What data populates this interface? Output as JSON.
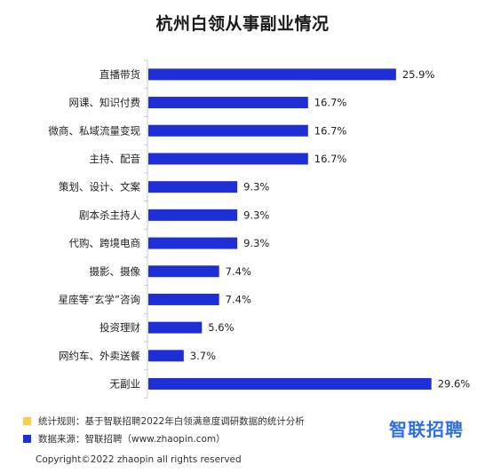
{
  "title": "杭州白领从事副业情况",
  "chart_data": {
    "type": "bar",
    "orientation": "horizontal",
    "title": "杭州白领从事副业情况",
    "categories": [
      "直播带货",
      "网课、知识付费",
      "微商、私域流量变现",
      "主持、配音",
      "策划、设计、文案",
      "剧本杀主持人",
      "代购、跨境电商",
      "摄影、摄像",
      "星座等“玄学”咨询",
      "投资理财",
      "网约车、外卖送餐",
      "无副业"
    ],
    "values": [
      25.9,
      16.7,
      16.7,
      16.7,
      9.3,
      9.3,
      9.3,
      7.4,
      7.4,
      5.6,
      3.7,
      29.6
    ],
    "value_labels": [
      "25.9%",
      "16.7%",
      "16.7%",
      "16.7%",
      "9.3%",
      "9.3%",
      "9.3%",
      "7.4%",
      "7.4%",
      "5.6%",
      "3.7%",
      "29.6%"
    ],
    "xlim": [
      0,
      30
    ],
    "bar_color": "#1f2fd6",
    "axis_color": "#c8c8c8",
    "grid": false
  },
  "legend": {
    "rule_text": "统计规则：基于智联招聘2022年白领满意度调研数据的统计分析",
    "rule_color": "#f7cf4a",
    "source_text": "数据来源：智联招聘（www.zhaopin.com）",
    "source_color": "#1f2fd6"
  },
  "brand": {
    "text": "智联招聘",
    "color": "#2e6fe6"
  },
  "copyright": "Copyright©2022 zhaopin all rights reserved"
}
